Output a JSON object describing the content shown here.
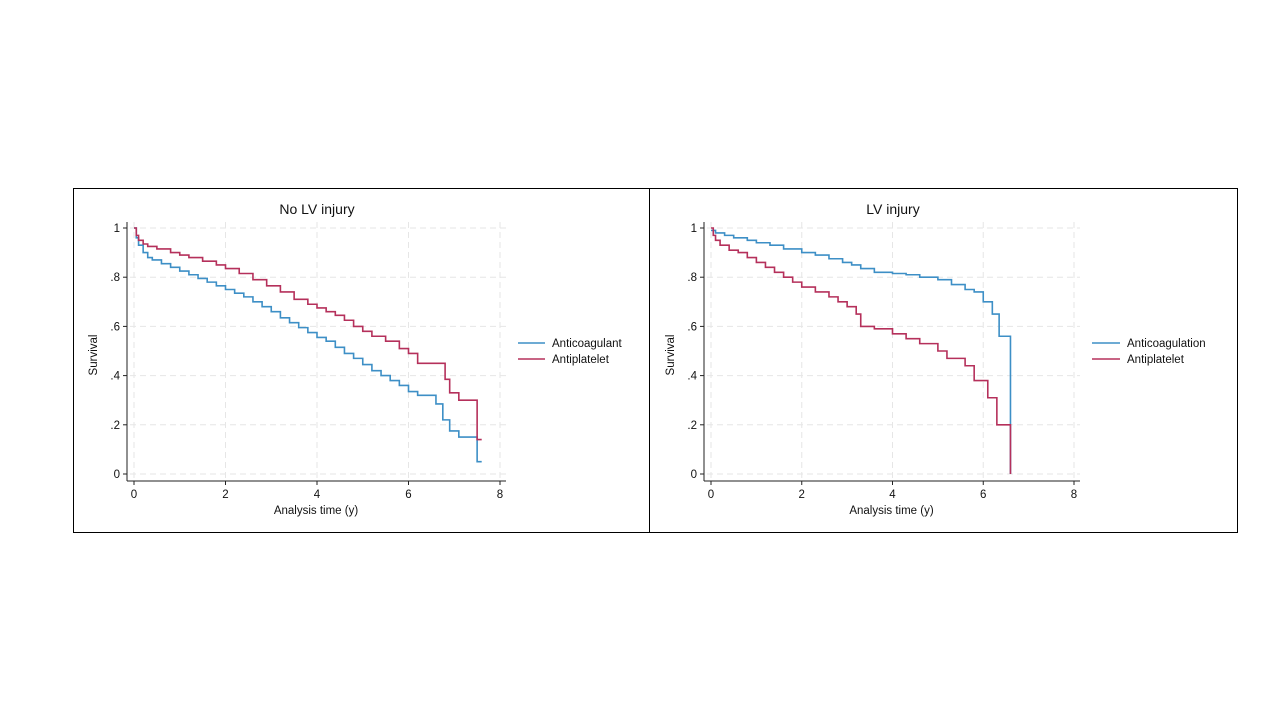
{
  "chart_data": [
    {
      "type": "line",
      "title": "No LV injury",
      "xlabel": "Analysis time (y)",
      "ylabel": "Survival",
      "xlim": [
        0,
        8
      ],
      "ylim": [
        0,
        1
      ],
      "xticks": [
        0,
        2,
        4,
        6,
        8
      ],
      "xtick_labels": [
        "0",
        "2",
        "4",
        "6",
        "8"
      ],
      "yticks": [
        0,
        0.2,
        0.4,
        0.6,
        0.8,
        1
      ],
      "ytick_labels": [
        "0",
        ".2",
        ".4",
        ".6",
        ".8",
        "1"
      ],
      "grid": true,
      "legend_position": "right",
      "series": [
        {
          "name": "Anticoagulant",
          "color": "#3d8fc6",
          "step": true,
          "x": [
            0,
            0.05,
            0.1,
            0.2,
            0.3,
            0.4,
            0.6,
            0.8,
            1.0,
            1.2,
            1.4,
            1.6,
            1.8,
            2.0,
            2.2,
            2.4,
            2.6,
            2.8,
            3.0,
            3.2,
            3.4,
            3.6,
            3.8,
            4.0,
            4.2,
            4.4,
            4.6,
            4.8,
            5.0,
            5.2,
            5.4,
            5.6,
            5.8,
            6.0,
            6.2,
            6.6,
            6.75,
            6.9,
            7.1,
            7.5,
            7.6
          ],
          "y": [
            1.0,
            0.96,
            0.93,
            0.9,
            0.88,
            0.87,
            0.855,
            0.84,
            0.825,
            0.81,
            0.795,
            0.78,
            0.765,
            0.75,
            0.735,
            0.72,
            0.7,
            0.68,
            0.66,
            0.635,
            0.615,
            0.595,
            0.575,
            0.555,
            0.54,
            0.515,
            0.49,
            0.47,
            0.445,
            0.42,
            0.4,
            0.38,
            0.36,
            0.335,
            0.32,
            0.285,
            0.22,
            0.175,
            0.15,
            0.05,
            0.05
          ]
        },
        {
          "name": "Antiplatelet",
          "color": "#b5305b",
          "step": true,
          "x": [
            0,
            0.05,
            0.1,
            0.2,
            0.3,
            0.5,
            0.8,
            1.0,
            1.2,
            1.5,
            1.8,
            2.0,
            2.3,
            2.6,
            2.9,
            3.2,
            3.5,
            3.8,
            4.0,
            4.2,
            4.4,
            4.6,
            4.8,
            5.0,
            5.2,
            5.5,
            5.8,
            6.0,
            6.2,
            6.8,
            6.9,
            7.1,
            7.5,
            7.6
          ],
          "y": [
            1.0,
            0.97,
            0.95,
            0.935,
            0.925,
            0.915,
            0.9,
            0.89,
            0.88,
            0.865,
            0.85,
            0.835,
            0.815,
            0.79,
            0.765,
            0.74,
            0.71,
            0.69,
            0.675,
            0.66,
            0.645,
            0.625,
            0.6,
            0.58,
            0.56,
            0.54,
            0.51,
            0.49,
            0.45,
            0.385,
            0.33,
            0.3,
            0.14,
            0.14
          ]
        }
      ]
    },
    {
      "type": "line",
      "title": "LV injury",
      "xlabel": "Analysis time (y)",
      "ylabel": "Survival",
      "xlim": [
        0,
        8
      ],
      "ylim": [
        0,
        1
      ],
      "xticks": [
        0,
        2,
        4,
        6,
        8
      ],
      "xtick_labels": [
        "0",
        "2",
        "4",
        "6",
        "8"
      ],
      "yticks": [
        0,
        0.2,
        0.4,
        0.6,
        0.8,
        1
      ],
      "ytick_labels": [
        "0",
        ".2",
        ".4",
        ".6",
        ".8",
        "1"
      ],
      "grid": true,
      "legend_position": "right",
      "series": [
        {
          "name": "Anticoagulation",
          "color": "#3d8fc6",
          "step": true,
          "x": [
            0,
            0.1,
            0.3,
            0.5,
            0.8,
            1.0,
            1.3,
            1.6,
            2.0,
            2.3,
            2.6,
            2.9,
            3.1,
            3.3,
            3.6,
            4.0,
            4.3,
            4.6,
            5.0,
            5.3,
            5.6,
            5.8,
            6.0,
            6.2,
            6.35,
            6.6
          ],
          "y": [
            0.99,
            0.98,
            0.97,
            0.96,
            0.95,
            0.94,
            0.93,
            0.915,
            0.9,
            0.89,
            0.875,
            0.86,
            0.85,
            0.835,
            0.82,
            0.815,
            0.81,
            0.8,
            0.79,
            0.77,
            0.75,
            0.74,
            0.7,
            0.65,
            0.56,
            0.0
          ]
        },
        {
          "name": "Antiplatelet",
          "color": "#b5305b",
          "step": true,
          "x": [
            0,
            0.05,
            0.1,
            0.2,
            0.4,
            0.6,
            0.8,
            1.0,
            1.2,
            1.4,
            1.6,
            1.8,
            2.0,
            2.3,
            2.6,
            2.8,
            3.0,
            3.2,
            3.3,
            3.6,
            4.0,
            4.3,
            4.6,
            5.0,
            5.2,
            5.6,
            5.8,
            6.1,
            6.3,
            6.6
          ],
          "y": [
            1.0,
            0.97,
            0.95,
            0.93,
            0.91,
            0.9,
            0.88,
            0.86,
            0.84,
            0.82,
            0.8,
            0.78,
            0.76,
            0.74,
            0.72,
            0.7,
            0.68,
            0.65,
            0.6,
            0.59,
            0.57,
            0.55,
            0.53,
            0.5,
            0.47,
            0.44,
            0.38,
            0.31,
            0.2,
            0.0
          ]
        }
      ]
    }
  ]
}
